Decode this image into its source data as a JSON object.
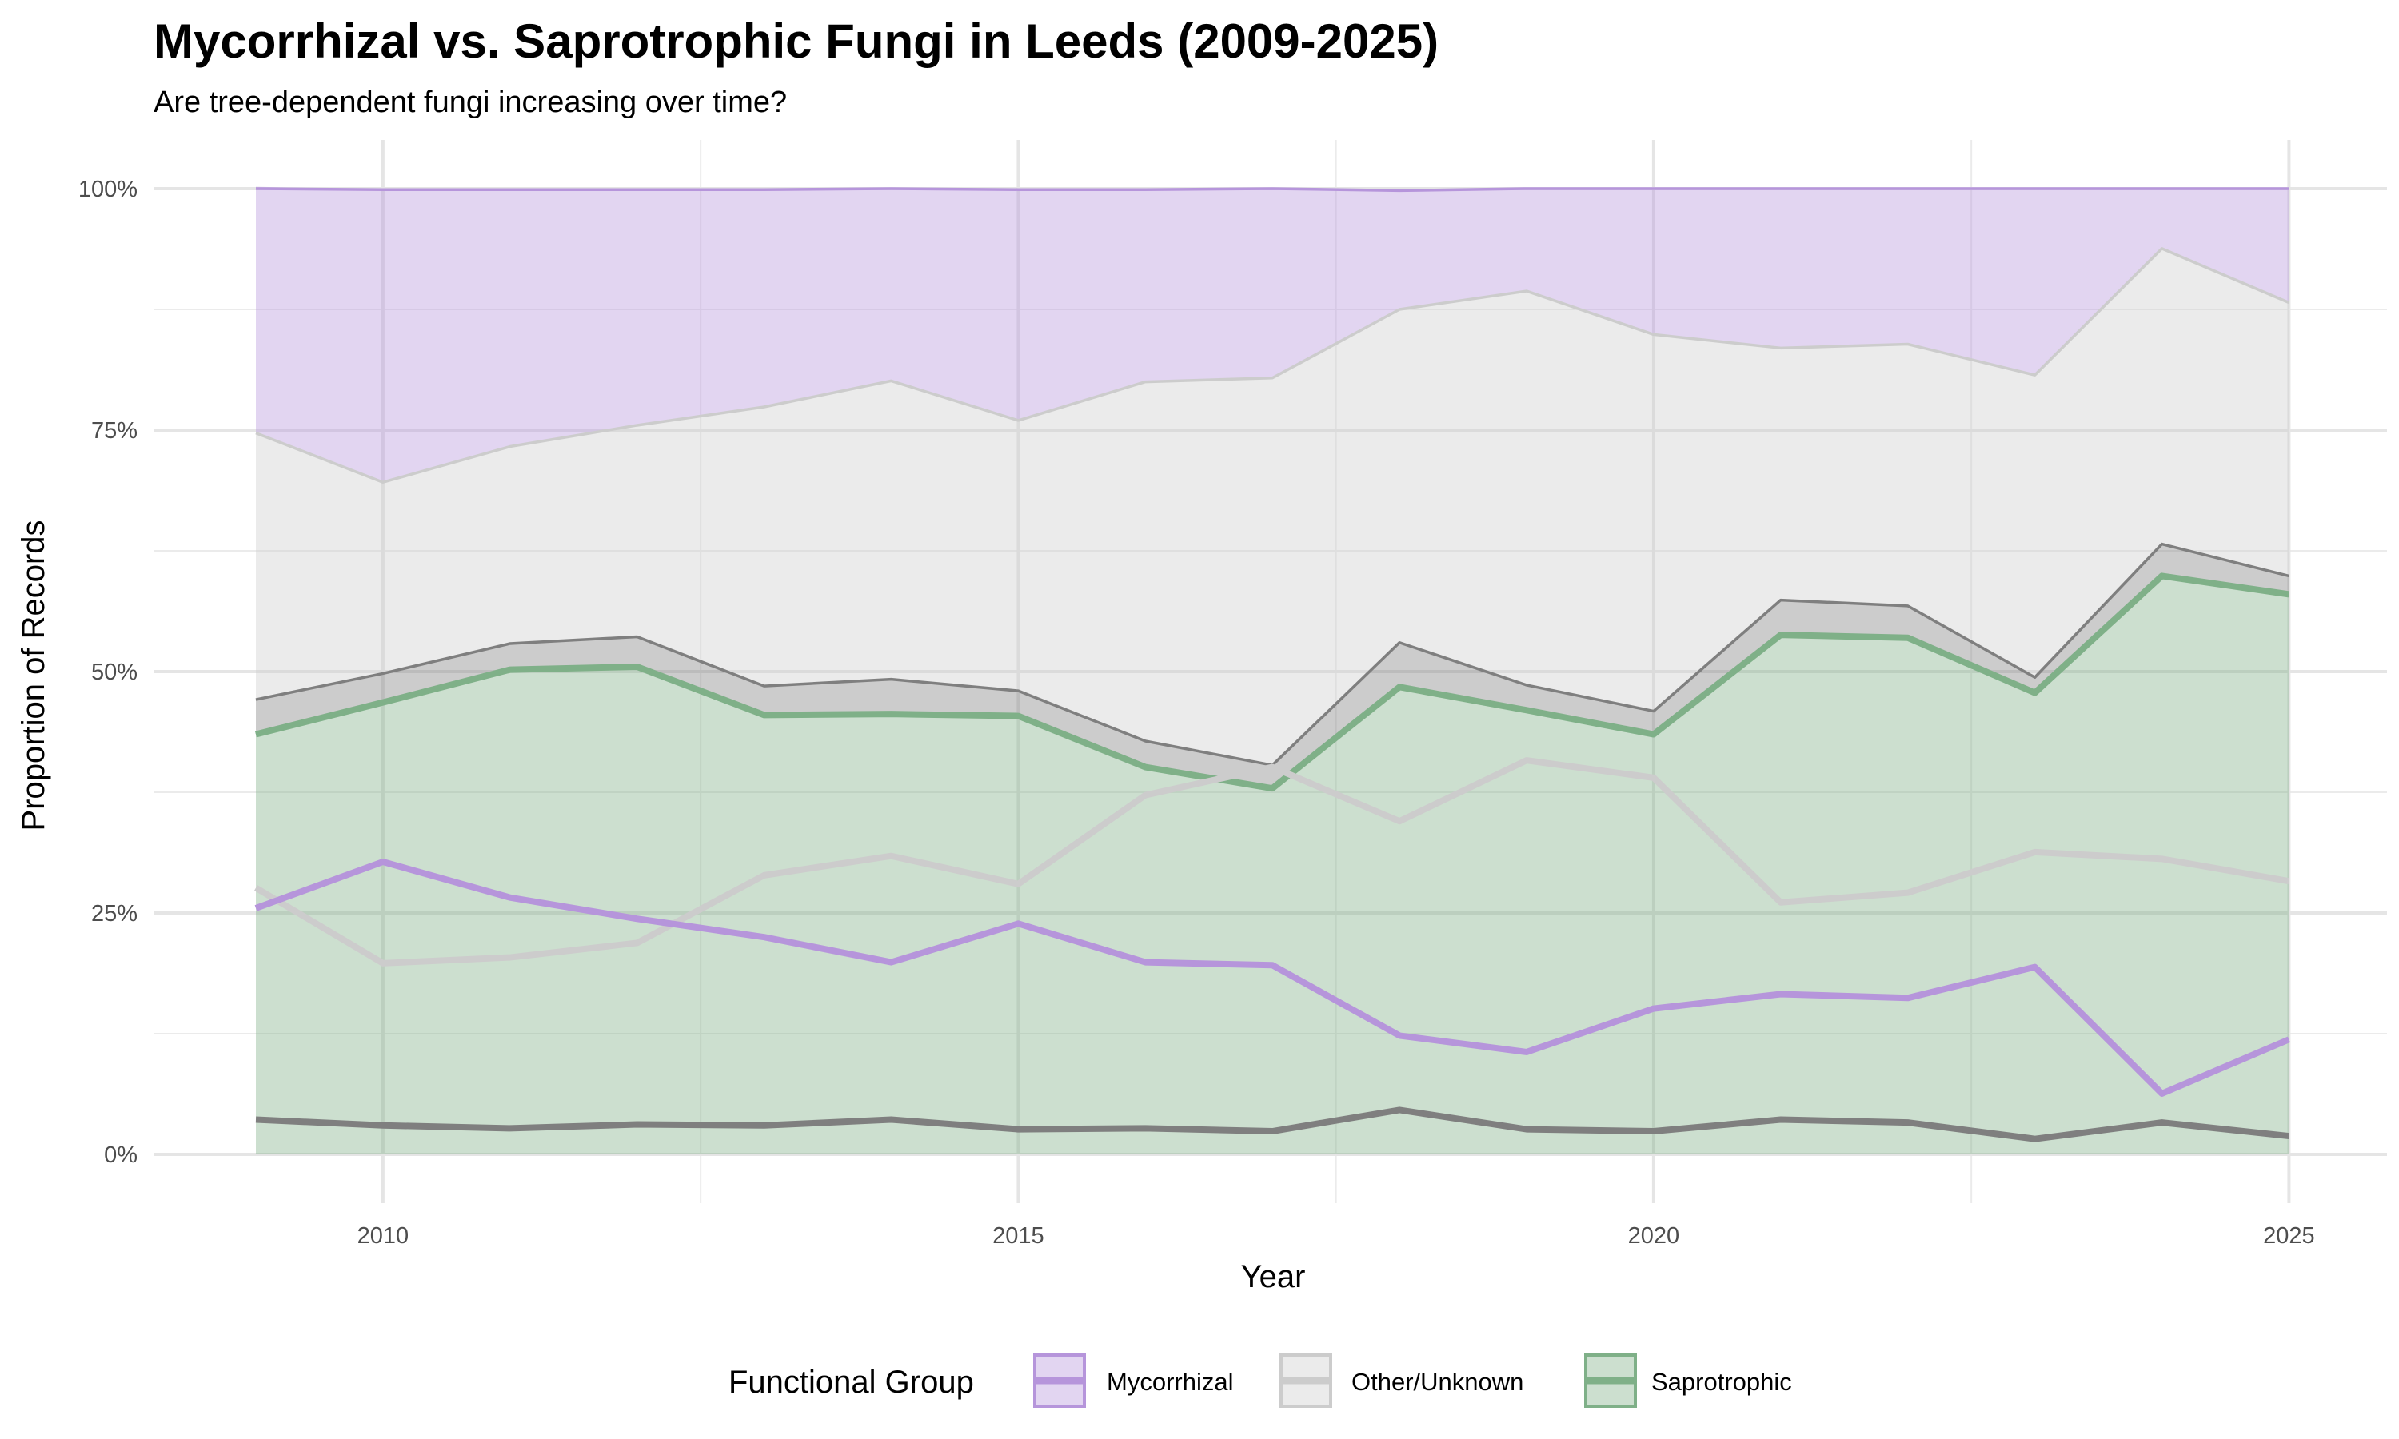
{
  "chart_data": {
    "type": "area",
    "stacked": true,
    "title": "Mycorrhizal vs. Saprotrophic Fungi in Leeds (2009-2025)",
    "subtitle": "Are tree-dependent fungi increasing over time?",
    "xlabel": "Year",
    "ylabel": "Proportion of Records",
    "xlim": [
      2009,
      2025
    ],
    "ylim": [
      0,
      100
    ],
    "x_ticks": [
      "2010",
      "2015",
      "2020",
      "2025"
    ],
    "y_ticks": [
      "0%",
      "25%",
      "50%",
      "75%",
      "100%"
    ],
    "grid": true,
    "legend": {
      "title": "Functional Group",
      "position": "bottom",
      "entries": [
        "Mycorrhizal",
        "Other/Unknown",
        "Saprotrophic"
      ]
    },
    "x": [
      2009,
      2010,
      2011,
      2012,
      2013,
      2014,
      2015,
      2016,
      2017,
      2018,
      2019,
      2020,
      2021,
      2022,
      2023,
      2024,
      2025
    ],
    "series": [
      {
        "name": "Saprotrophic",
        "color": "#7fb088",
        "values": [
          43.5,
          46.8,
          50.2,
          50.5,
          45.5,
          45.6,
          45.4,
          40.1,
          37.9,
          48.4,
          46.0,
          43.5,
          53.8,
          53.5,
          47.8,
          59.9,
          58.0
        ]
      },
      {
        "color": "#7f7f7f",
        "values": [
          3.6,
          3.0,
          2.7,
          3.1,
          3.0,
          3.6,
          2.6,
          2.7,
          2.4,
          4.6,
          2.6,
          2.4,
          3.6,
          3.3,
          1.6,
          3.3,
          1.9
        ]
      },
      {
        "name": "Other/Unknown",
        "color": "#cccccc",
        "values": [
          27.6,
          19.8,
          20.4,
          21.9,
          28.9,
          30.9,
          28.0,
          37.2,
          40.1,
          34.5,
          40.8,
          39.0,
          26.1,
          27.1,
          31.3,
          30.6,
          28.3
        ]
      },
      {
        "name": "Mycorrhizal",
        "color": "#b695db",
        "values": [
          25.5,
          30.3,
          26.6,
          24.4,
          22.5,
          19.9,
          23.9,
          19.9,
          19.6,
          12.3,
          10.6,
          15.1,
          16.6,
          16.2,
          19.4,
          6.3,
          11.9
        ]
      }
    ]
  }
}
